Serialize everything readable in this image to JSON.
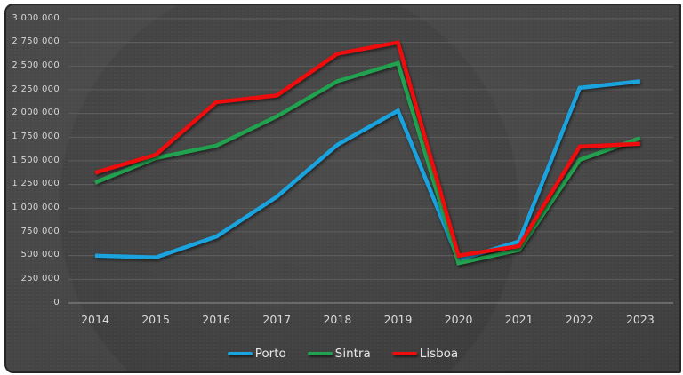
{
  "chart_data": {
    "type": "line",
    "categories": [
      "2014",
      "2015",
      "2016",
      "2017",
      "2018",
      "2019",
      "2020",
      "2021",
      "2022",
      "2023"
    ],
    "series": [
      {
        "name": "Porto",
        "color": "#18a2de",
        "values": [
          500000,
          480000,
          700000,
          1120000,
          1670000,
          2030000,
          455000,
          650000,
          2270000,
          2340000
        ]
      },
      {
        "name": "Sintra",
        "color": "#20a14e",
        "values": [
          1270000,
          1530000,
          1660000,
          1970000,
          2340000,
          2530000,
          420000,
          560000,
          1510000,
          1740000
        ]
      },
      {
        "name": "Lisboa",
        "color": "#ee0b0b",
        "values": [
          1375000,
          1565000,
          2120000,
          2190000,
          2630000,
          2750000,
          500000,
          600000,
          1650000,
          1680000
        ]
      }
    ],
    "title": "",
    "xlabel": "",
    "ylabel": "",
    "y_axis": {
      "min": 0,
      "max": 3000000,
      "tick_interval": 250000,
      "tick_label_format": "thousands separated by spaces"
    },
    "y_tick_labels": [
      "0",
      "250 000",
      "500 000",
      "750 000",
      "1 000 000",
      "1 250 000",
      "1 500 000",
      "1 750 000",
      "2 000 000",
      "2 250 000",
      "2 500 000",
      "2 750 000",
      "3 000 000"
    ],
    "grid": "horizontal gridlines on",
    "legend_position": "bottom-center"
  },
  "legend": {
    "items": [
      {
        "label": "Porto",
        "color": "#18a2de"
      },
      {
        "label": "Sintra",
        "color": "#20a14e"
      },
      {
        "label": "Lisboa",
        "color": "#ee0b0b"
      }
    ]
  },
  "theme": {
    "background": "#3e3e3e",
    "border": "#272727",
    "gridline": "#5d5d5d",
    "axis_line": "#8f8f8f",
    "axis_text": "#d6d6d6",
    "legend_text": "#e8e8e8"
  }
}
